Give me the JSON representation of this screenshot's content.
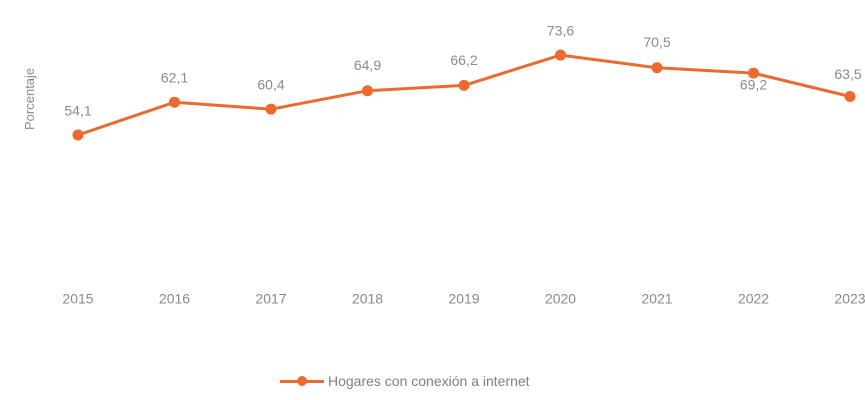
{
  "chart_data": {
    "type": "line",
    "ylabel": "Porcentaje",
    "x": [
      "2015",
      "2016",
      "2017",
      "2018",
      "2019",
      "2020",
      "2021",
      "2022",
      "2023"
    ],
    "series": [
      {
        "name": "Hogares con conexión a internet",
        "values": [
          54.1,
          62.1,
          60.4,
          64.9,
          66.2,
          73.6,
          70.5,
          69.2,
          63.5
        ],
        "labels": [
          "54,1",
          "62,1",
          "60,4",
          "64,9",
          "66,2",
          "73,6",
          "70,5",
          "69,2",
          "63,5"
        ]
      }
    ],
    "grid": false,
    "legend_position": "bottom-center",
    "colors": {
      "series": "#ed6a2e",
      "text": "#8a8a8a"
    }
  }
}
